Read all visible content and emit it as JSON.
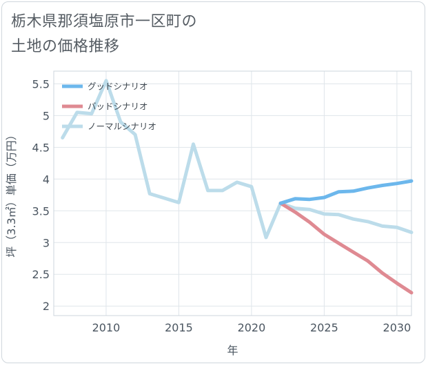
{
  "title_lines": [
    "栃木県那須塩原市一区町の",
    "土地の価格推移"
  ],
  "chart_data": {
    "type": "line",
    "xlabel": "年",
    "ylabel": "坪（3.3㎡）単価（万円）",
    "xlim": [
      2006.4,
      2031
    ],
    "ylim": [
      1.85,
      5.7
    ],
    "xticks": [
      2010,
      2015,
      2020,
      2025,
      2030
    ],
    "xtick_labels": [
      "2010",
      "2015",
      "2020",
      "2025",
      "2030"
    ],
    "yticks": [
      2,
      2.5,
      3,
      3.5,
      4,
      4.5,
      5,
      5.5
    ],
    "ytick_labels": [
      "2",
      "2.5",
      "3",
      "3.5",
      "4",
      "4.5",
      "5",
      "5.5"
    ],
    "grid": true,
    "legend_position": "top-left",
    "series": [
      {
        "name": "グッドシナリオ",
        "color": "#6cb7ec",
        "x": [
          2022,
          2023,
          2024,
          2025,
          2026,
          2027,
          2028,
          2029,
          2030,
          2031
        ],
        "y": [
          3.62,
          3.69,
          3.68,
          3.71,
          3.8,
          3.81,
          3.86,
          3.9,
          3.93,
          3.97
        ]
      },
      {
        "name": "バッドシナリオ",
        "color": "#df8a92",
        "x": [
          2022,
          2023,
          2024,
          2025,
          2026,
          2027,
          2028,
          2029,
          2030,
          2031
        ],
        "y": [
          3.62,
          3.48,
          3.32,
          3.13,
          2.99,
          2.85,
          2.71,
          2.52,
          2.36,
          2.21
        ]
      },
      {
        "name": "ノーマルシナリオ",
        "color": "#bcdcea",
        "x": [
          2007,
          2008,
          2009,
          2010,
          2011,
          2012,
          2013,
          2014,
          2015,
          2016,
          2017,
          2018,
          2019,
          2020,
          2021,
          2022,
          2023,
          2024,
          2025,
          2026,
          2027,
          2028,
          2029,
          2030,
          2031
        ],
        "y": [
          4.65,
          5.05,
          5.03,
          5.55,
          4.9,
          4.7,
          3.77,
          3.7,
          3.63,
          4.55,
          3.82,
          3.82,
          3.95,
          3.88,
          3.08,
          3.62,
          3.54,
          3.52,
          3.45,
          3.44,
          3.37,
          3.33,
          3.26,
          3.24,
          3.16
        ]
      }
    ]
  }
}
